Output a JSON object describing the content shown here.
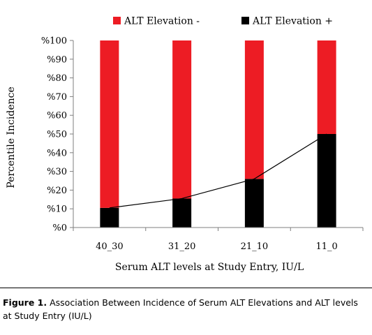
{
  "chart_data": {
    "type": "bar",
    "stacked": true,
    "categories": [
      "40_30",
      "31_20",
      "21_10",
      "11_0"
    ],
    "series": [
      {
        "name": "ALT Elevation -",
        "color": "#ed1c24",
        "values": [
          89.5,
          84.5,
          74,
          50
        ]
      },
      {
        "name": "ALT Elevation +",
        "color": "#000000",
        "values": [
          10.5,
          15.5,
          26,
          50
        ]
      }
    ],
    "line_overlay": {
      "series": "ALT Elevation +",
      "values": [
        10.5,
        15.5,
        26,
        50
      ],
      "color": "#000000"
    },
    "ylim": [
      0,
      100
    ],
    "yticks": [
      "%0",
      "%10",
      "%20",
      "%30",
      "%40",
      "%50",
      "%60",
      "%70",
      "%80",
      "%90",
      "%100"
    ],
    "xlabel": "Serum ALT levels at Study Entry, IU/L",
    "ylabel": "Percentile Incidence",
    "legend_position": "top",
    "grid": false
  },
  "caption": {
    "label": "Figure 1.",
    "text": "Association Between Incidence of Serum ALT Elevations and ALT levels at Study Entry (IU/L)"
  }
}
